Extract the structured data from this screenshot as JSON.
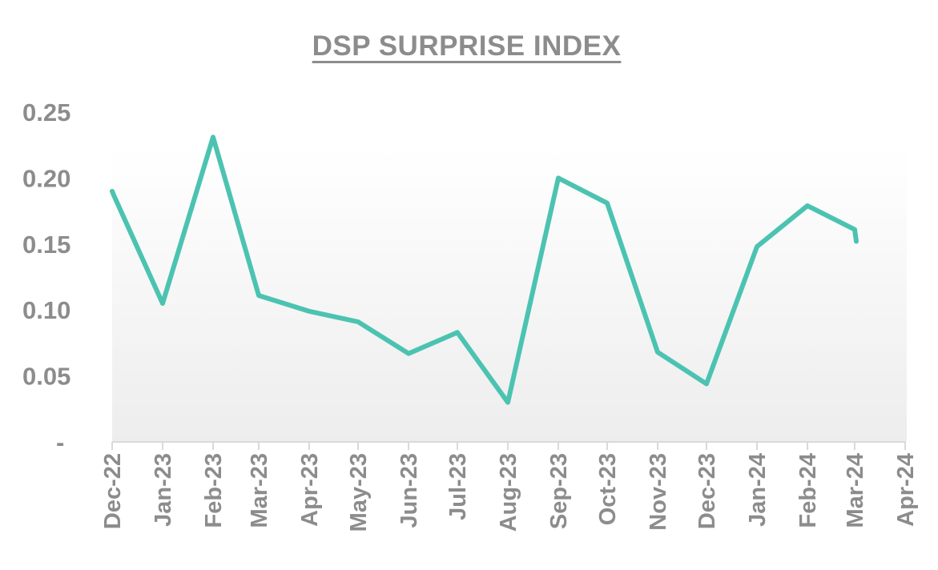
{
  "chart_data": {
    "type": "line",
    "title": "DSP SURPRISE INDEX",
    "xlabel": "",
    "ylabel": "",
    "ylim": [
      0,
      0.25
    ],
    "y_ticks": [
      {
        "value": 0,
        "label": "-"
      },
      {
        "value": 0.05,
        "label": "0.05"
      },
      {
        "value": 0.1,
        "label": "0.10"
      },
      {
        "value": 0.15,
        "label": "0.15"
      },
      {
        "value": 0.2,
        "label": "0.20"
      },
      {
        "value": 0.25,
        "label": "0.25"
      }
    ],
    "x_ticks": [
      "Dec-22",
      "Jan-23",
      "Feb-23",
      "Mar-23",
      "Apr-23",
      "May-23",
      "Jun-23",
      "Jul-23",
      "Aug-23",
      "Sep-23",
      "Oct-23",
      "Nov-23",
      "Dec-23",
      "Jan-24",
      "Feb-24",
      "Mar-24",
      "Apr-24"
    ],
    "grid": false,
    "legend": "none",
    "line_color": "#4cc3b1",
    "series": [
      {
        "x": [
          "2022-12-01",
          "2022-12-02",
          "2023-01-01",
          "2023-02-01",
          "2023-03-01",
          "2023-04-01",
          "2023-05-01",
          "2023-06-01",
          "2023-07-01",
          "2023-08-01",
          "2023-09-01",
          "2023-10-01",
          "2023-11-01",
          "2023-12-01",
          "2024-01-01",
          "2024-02-01",
          "2024-03-01",
          "2024-03-02"
        ],
        "values": [
          0.19,
          0.187,
          0.105,
          0.231,
          0.111,
          0.099,
          0.091,
          0.067,
          0.083,
          0.03,
          0.2,
          0.181,
          0.068,
          0.044,
          0.148,
          0.179,
          0.161,
          0.152
        ]
      }
    ]
  }
}
